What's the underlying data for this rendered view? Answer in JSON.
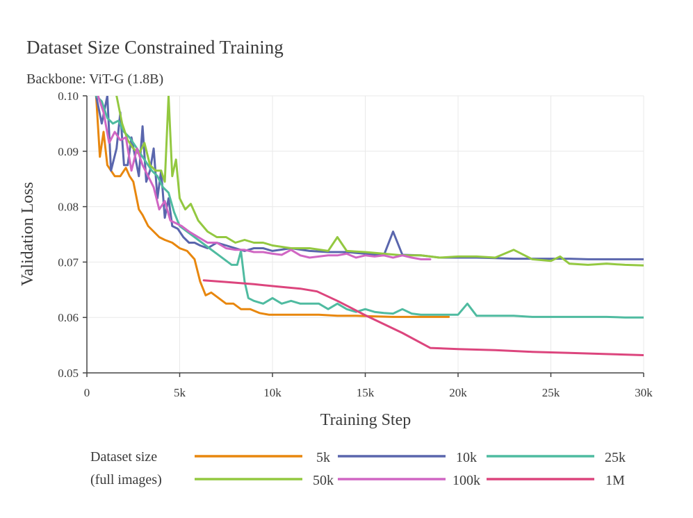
{
  "chart_data": {
    "type": "line",
    "title": "Dataset Size Constrained Training",
    "subtitle": "Backbone: ViT-G (1.8B)",
    "xlabel": "Training Step",
    "ylabel": "Validation Loss",
    "xlim": [
      0,
      30000
    ],
    "ylim": [
      0.05,
      0.1
    ],
    "x_ticks": [
      0,
      5000,
      10000,
      15000,
      20000,
      25000,
      30000
    ],
    "x_tick_labels": [
      "0",
      "5k",
      "10k",
      "15k",
      "20k",
      "25k",
      "30k"
    ],
    "y_ticks": [
      0.05,
      0.06,
      0.07,
      0.08,
      0.09,
      0.1
    ],
    "y_tick_labels": [
      "0.05",
      "0.06",
      "0.07",
      "0.08",
      "0.09",
      "0.10"
    ],
    "legend_title_line1": "Dataset size",
    "legend_title_line2": "(full images)",
    "legend_position": "bottom",
    "series": [
      {
        "name": "5k",
        "color": "#e8870e",
        "x": [
          500,
          700,
          900,
          1100,
          1300,
          1500,
          1800,
          2100,
          2300,
          2500,
          2800,
          3000,
          3300,
          3600,
          3900,
          4200,
          4600,
          5000,
          5400,
          5800,
          6100,
          6400,
          6700,
          7100,
          7500,
          7900,
          8300,
          8800,
          9300,
          9800,
          10500,
          11500,
          12500,
          13500,
          14500,
          15500,
          16500,
          17500,
          18500,
          19500
        ],
        "y": [
          0.1,
          0.089,
          0.0935,
          0.0875,
          0.0865,
          0.0855,
          0.0855,
          0.087,
          0.0855,
          0.0845,
          0.0795,
          0.0785,
          0.0765,
          0.0755,
          0.0745,
          0.074,
          0.0735,
          0.0725,
          0.072,
          0.0705,
          0.0665,
          0.064,
          0.0645,
          0.0635,
          0.0625,
          0.0625,
          0.0615,
          0.0615,
          0.0608,
          0.0605,
          0.0605,
          0.0605,
          0.0605,
          0.0603,
          0.0603,
          0.0602,
          0.0601,
          0.0601,
          0.0601,
          0.0601
        ]
      },
      {
        "name": "10k",
        "color": "#5a66ad",
        "x": [
          500,
          800,
          1100,
          1300,
          1600,
          1800,
          2000,
          2200,
          2400,
          2600,
          2800,
          3000,
          3200,
          3400,
          3600,
          3800,
          4000,
          4200,
          4400,
          4600,
          4900,
          5200,
          5500,
          5800,
          6100,
          6500,
          7000,
          7500,
          8000,
          8500,
          9000,
          9500,
          10000,
          11000,
          12000,
          13000,
          14000,
          15000,
          16000,
          16500,
          17000,
          18000,
          19000,
          20000,
          21000,
          22000,
          23000,
          24000,
          25000,
          26000,
          27000,
          28000,
          29000,
          30000
        ],
        "y": [
          0.1,
          0.095,
          0.1,
          0.0865,
          0.0905,
          0.097,
          0.0875,
          0.0875,
          0.0925,
          0.089,
          0.0855,
          0.0945,
          0.0845,
          0.0865,
          0.0905,
          0.0815,
          0.0865,
          0.078,
          0.0815,
          0.0765,
          0.076,
          0.0745,
          0.0735,
          0.0735,
          0.073,
          0.0725,
          0.0735,
          0.073,
          0.0725,
          0.072,
          0.0725,
          0.0725,
          0.072,
          0.0725,
          0.072,
          0.0718,
          0.0718,
          0.0715,
          0.0712,
          0.0755,
          0.0713,
          0.0712,
          0.0708,
          0.0708,
          0.0708,
          0.0707,
          0.0706,
          0.0706,
          0.0706,
          0.0706,
          0.0705,
          0.0705,
          0.0705,
          0.0705
        ]
      },
      {
        "name": "25k",
        "color": "#4fbba0",
        "x": [
          500,
          800,
          1100,
          1400,
          1700,
          2000,
          2300,
          2600,
          2900,
          3200,
          3500,
          3800,
          4100,
          4400,
          4700,
          5000,
          5400,
          5800,
          6200,
          6600,
          7000,
          7400,
          7800,
          8100,
          8300,
          8500,
          8700,
          9000,
          9500,
          10000,
          10500,
          11000,
          11500,
          12000,
          12500,
          13000,
          13500,
          14000,
          14500,
          15000,
          15500,
          16000,
          16500,
          17000,
          17500,
          18000,
          19000,
          20000,
          20500,
          21000,
          22000,
          23000,
          24000,
          25000,
          26000,
          27000,
          28000,
          29000,
          30000
        ],
        "y": [
          0.1,
          0.099,
          0.096,
          0.095,
          0.0955,
          0.0935,
          0.0925,
          0.091,
          0.0895,
          0.088,
          0.0865,
          0.0855,
          0.0835,
          0.0825,
          0.079,
          0.0765,
          0.0755,
          0.0745,
          0.0735,
          0.0725,
          0.0715,
          0.0705,
          0.0695,
          0.0695,
          0.072,
          0.0665,
          0.0635,
          0.063,
          0.0625,
          0.0635,
          0.0625,
          0.063,
          0.0625,
          0.0625,
          0.0625,
          0.0615,
          0.0625,
          0.0615,
          0.061,
          0.0615,
          0.061,
          0.0608,
          0.0607,
          0.0615,
          0.0607,
          0.0605,
          0.0605,
          0.0605,
          0.0625,
          0.0603,
          0.0603,
          0.0603,
          0.0601,
          0.0601,
          0.0601,
          0.0601,
          0.0601,
          0.06,
          0.06
        ]
      },
      {
        "name": "50k",
        "color": "#93c840",
        "x": [
          1600,
          1900,
          2200,
          2500,
          2800,
          3100,
          3400,
          3700,
          4000,
          4200,
          4400,
          4600,
          4800,
          5000,
          5300,
          5600,
          6000,
          6500,
          7000,
          7500,
          8000,
          8500,
          9000,
          9500,
          10000,
          11000,
          12000,
          13000,
          13500,
          14000,
          15000,
          16000,
          17000,
          18000,
          19000,
          20000,
          21000,
          22000,
          23000,
          24000,
          25000,
          25500,
          26000,
          27000,
          28000,
          29000,
          30000
        ],
        "y": [
          0.1,
          0.095,
          0.092,
          0.0905,
          0.0895,
          0.0915,
          0.0875,
          0.0865,
          0.0865,
          0.0845,
          0.1,
          0.0855,
          0.0885,
          0.0815,
          0.0795,
          0.0805,
          0.0775,
          0.0755,
          0.0745,
          0.0745,
          0.0735,
          0.074,
          0.0735,
          0.0735,
          0.073,
          0.0725,
          0.0725,
          0.072,
          0.0745,
          0.072,
          0.0718,
          0.0715,
          0.0712,
          0.0712,
          0.0708,
          0.071,
          0.071,
          0.0708,
          0.0722,
          0.0705,
          0.0702,
          0.071,
          0.0697,
          0.0695,
          0.0697,
          0.0695,
          0.0694
        ]
      },
      {
        "name": "100k",
        "color": "#d066c3",
        "x": [
          600,
          900,
          1200,
          1500,
          1800,
          2100,
          2400,
          2700,
          3000,
          3300,
          3600,
          3900,
          4200,
          4500,
          4800,
          5100,
          5500,
          6000,
          6500,
          7000,
          7500,
          8000,
          8500,
          9000,
          9500,
          10000,
          10500,
          11000,
          11500,
          12000,
          12500,
          13000,
          13500,
          14000,
          14500,
          15000,
          15500,
          16000,
          16500,
          17000,
          17500,
          18000,
          18500
        ],
        "y": [
          0.1,
          0.097,
          0.0915,
          0.0935,
          0.092,
          0.0925,
          0.0865,
          0.0905,
          0.0875,
          0.0855,
          0.0835,
          0.0795,
          0.081,
          0.0775,
          0.077,
          0.0765,
          0.0755,
          0.0745,
          0.0735,
          0.0735,
          0.0725,
          0.0722,
          0.0722,
          0.0718,
          0.0718,
          0.0715,
          0.0713,
          0.0722,
          0.0712,
          0.0708,
          0.071,
          0.0712,
          0.0712,
          0.0715,
          0.0708,
          0.0712,
          0.071,
          0.0712,
          0.0708,
          0.0712,
          0.0708,
          0.0705,
          0.0705
        ]
      },
      {
        "name": "1M",
        "color": "#dc457d",
        "x": [
          6300,
          7500,
          9000,
          10500,
          11500,
          12400,
          13500,
          15000,
          17000,
          18500,
          20000,
          22000,
          24000,
          26000,
          28000,
          30000
        ],
        "y": [
          0.0667,
          0.0664,
          0.066,
          0.0655,
          0.0652,
          0.0647,
          0.063,
          0.0604,
          0.0572,
          0.0545,
          0.0543,
          0.0541,
          0.0538,
          0.0536,
          0.0534,
          0.0532
        ]
      }
    ]
  }
}
